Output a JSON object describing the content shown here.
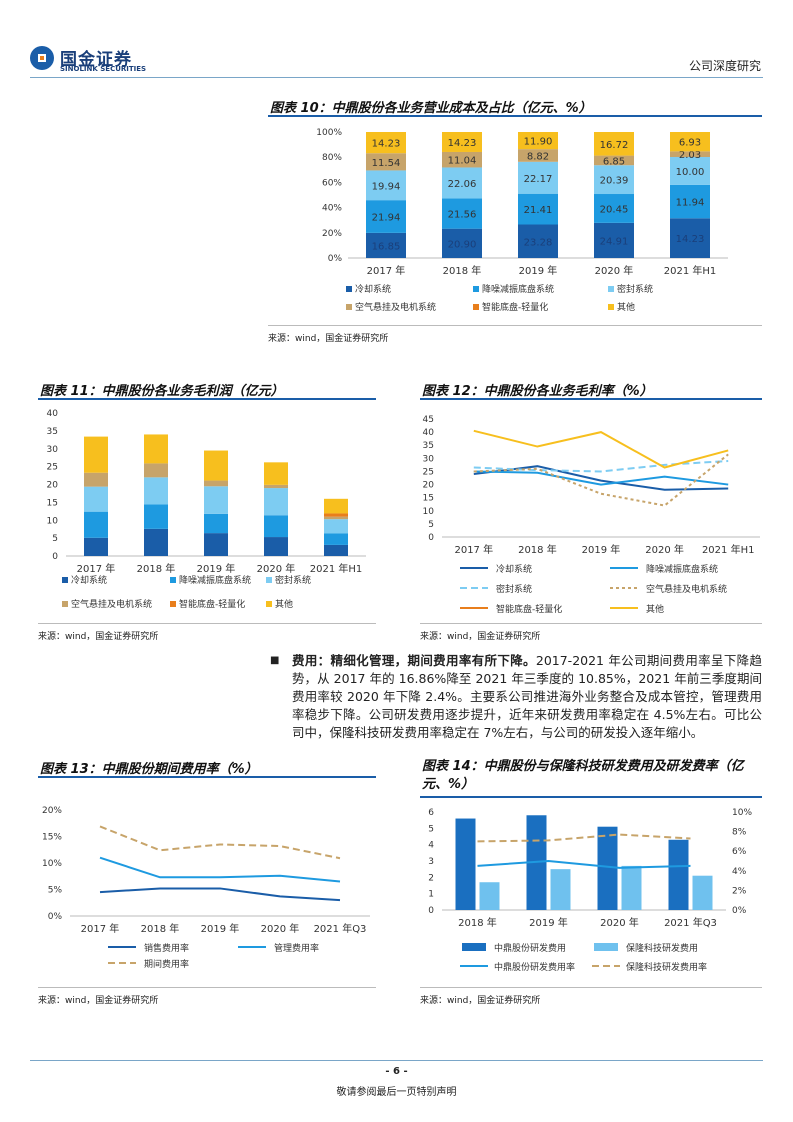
{
  "header": {
    "logo_cn": "国金证券",
    "logo_en": "SINOLINK SECURITIES",
    "report_type": "公司深度研究"
  },
  "footer": {
    "page_number": "- 6 -",
    "disclaimer": "敬请参阅最后一页特别声明"
  },
  "figure10": {
    "title": "图表 10：中鼎股份各业务营业成本及占比（亿元、%）",
    "source": "来源：wind，国金证券研究所",
    "chart_data": {
      "type": "bar",
      "stacked": "percent",
      "categories": [
        "2017 年",
        "2018 年",
        "2019 年",
        "2020 年",
        "2021 年H1"
      ],
      "y_ticks": [
        "0%",
        "20%",
        "40%",
        "60%",
        "80%",
        "100%"
      ],
      "series": [
        {
          "name": "冷却系统",
          "color": "#1a5da8",
          "values": [
            16.85,
            20.9,
            23.28,
            24.91,
            14.23
          ]
        },
        {
          "name": "降噪减振底盘系统",
          "color": "#1e9ae0",
          "values": [
            21.94,
            21.56,
            21.41,
            20.45,
            11.94
          ]
        },
        {
          "name": "密封系统",
          "color": "#7dccf2",
          "values": [
            19.94,
            22.06,
            22.17,
            20.39,
            10.0
          ]
        },
        {
          "name": "空气悬挂及电机系统",
          "color": "#c7a46a",
          "values": [
            11.54,
            11.04,
            8.82,
            6.85,
            2.03
          ]
        },
        {
          "name": "智能底盘-轻量化",
          "color": "#e87e1c",
          "values": [
            0,
            0,
            0,
            0,
            0
          ]
        },
        {
          "name": "其他",
          "color": "#f7bf1e",
          "values": [
            14.23,
            14.23,
            11.9,
            16.72,
            6.93
          ]
        }
      ],
      "labels": [
        [
          "16.85",
          "21.94",
          "19.94",
          "11.54",
          "",
          "14.23"
        ],
        [
          "20.90",
          "21.56",
          "22.06",
          "11.04",
          "",
          "14.23"
        ],
        [
          "23.28",
          "21.41",
          "22.17",
          "8.82",
          "",
          "11.90"
        ],
        [
          "24.91",
          "20.45",
          "20.39",
          "6.85",
          "",
          "16.72"
        ],
        [
          "14.23",
          "11.94",
          "10.00",
          "2.03",
          "",
          "6.93"
        ]
      ]
    }
  },
  "figure11": {
    "title": "图表 11：中鼎股份各业务毛利润（亿元）",
    "source": "来源：wind，国金证券研究所",
    "chart_data": {
      "type": "bar",
      "stacked": "absolute",
      "categories": [
        "2017 年",
        "2018 年",
        "2019 年",
        "2020 年",
        "2021 年H1"
      ],
      "y_ticks": [
        "0",
        "5",
        "10",
        "15",
        "20",
        "25",
        "30",
        "35",
        "40"
      ],
      "ylim": [
        0,
        40
      ],
      "series": [
        {
          "name": "冷却系统",
          "color": "#1a5da8",
          "values": [
            5.1,
            7.6,
            6.4,
            5.3,
            3.1
          ]
        },
        {
          "name": "降噪减振底盘系统",
          "color": "#1e9ae0",
          "values": [
            7.3,
            6.8,
            5.4,
            6.1,
            3.2
          ]
        },
        {
          "name": "密封系统",
          "color": "#7dccf2",
          "values": [
            7.0,
            7.6,
            7.7,
            7.6,
            4.0
          ]
        },
        {
          "name": "空气悬挂及电机系统",
          "color": "#c7a46a",
          "values": [
            3.9,
            3.9,
            1.6,
            0.9,
            0.7
          ]
        },
        {
          "name": "智能底盘-轻量化",
          "color": "#e87e1c",
          "values": [
            0,
            0,
            0,
            0,
            0.9
          ]
        },
        {
          "name": "其他",
          "color": "#f7bf1e",
          "values": [
            10.1,
            8.1,
            8.4,
            6.3,
            4.1
          ]
        }
      ]
    }
  },
  "figure12": {
    "title": "图表 12：中鼎股份各业务毛利率（%）",
    "source": "来源：wind，国金证券研究所",
    "chart_data": {
      "type": "line",
      "categories": [
        "2017 年",
        "2018 年",
        "2019 年",
        "2020 年",
        "2021 年H1"
      ],
      "y_ticks": [
        "0",
        "5",
        "10",
        "15",
        "20",
        "25",
        "30",
        "35",
        "40",
        "45"
      ],
      "ylim": [
        0,
        45
      ],
      "series": [
        {
          "name": "冷却系统",
          "color": "#1a5da8",
          "style": "solid",
          "values": [
            24,
            27,
            21.5,
            18,
            18.5
          ]
        },
        {
          "name": "降噪减振底盘系统",
          "color": "#1e9ae0",
          "style": "solid",
          "values": [
            25,
            24.5,
            20,
            23,
            20
          ]
        },
        {
          "name": "密封系统",
          "color": "#7dccf2",
          "style": "dash",
          "values": [
            26.5,
            25.5,
            25,
            27.5,
            29
          ]
        },
        {
          "name": "空气悬挂及电机系统",
          "color": "#c7a46a",
          "style": "dot",
          "values": [
            25,
            26,
            16.5,
            12,
            31.5
          ]
        },
        {
          "name": "智能底盘-轻量化",
          "color": "#e87e1c",
          "style": "solid",
          "values": [
            null,
            null,
            null,
            null,
            null
          ]
        },
        {
          "name": "其他",
          "color": "#f7bf1e",
          "style": "solid",
          "values": [
            40.5,
            34.5,
            40,
            26.5,
            33
          ]
        }
      ]
    }
  },
  "paragraph": {
    "bullet": "■",
    "lead": "费用：精细化管理，期间费用率有所下降。",
    "body": "2017-2021 年公司期间费用率呈下降趋势，从 2017 年的 16.86%降至 2021 年三季度的 10.85%，2021 年前三季度期间费用率较 2020 年下降 2.4%。主要系公司推进海外业务整合及成本管控，管理费用率稳步下降。公司研发费用逐步提升，近年来研发费用率稳定在 4.5%左右。可比公司中，保隆科技研发费用率稳定在 7%左右，与公司的研发投入逐年缩小。"
  },
  "figure13": {
    "title": "图表 13：中鼎股份期间费用率（%）",
    "source": "来源：wind，国金证券研究所",
    "chart_data": {
      "type": "line",
      "categories": [
        "2017 年",
        "2018 年",
        "2019 年",
        "2020 年",
        "2021 年Q3"
      ],
      "y_ticks": [
        "0%",
        "5%",
        "10%",
        "15%",
        "20%"
      ],
      "ylim": [
        0,
        20
      ],
      "series": [
        {
          "name": "销售费用率",
          "color": "#1a5da8",
          "style": "solid",
          "values": [
            4.5,
            5.2,
            5.2,
            3.7,
            3.0
          ]
        },
        {
          "name": "管理费用率",
          "color": "#1e9ae0",
          "style": "solid",
          "values": [
            11.0,
            7.3,
            7.3,
            7.6,
            6.5
          ]
        },
        {
          "name": "期间费用率",
          "color": "#c7a46a",
          "style": "dash",
          "values": [
            16.9,
            12.4,
            13.5,
            13.2,
            10.9
          ]
        }
      ]
    }
  },
  "figure14": {
    "title": "图表 14：中鼎股份与保隆科技研发费用及研发费率（亿元、%）",
    "source": "来源：wind，国金证券研究所",
    "chart_data": {
      "type": "bar",
      "categories": [
        "2018 年",
        "2019 年",
        "2020 年",
        "2021 年Q3"
      ],
      "y_ticks_left": [
        "0",
        "1",
        "2",
        "3",
        "4",
        "5",
        "6"
      ],
      "y_ticks_right": [
        "0%",
        "2%",
        "4%",
        "6%",
        "8%",
        "10%"
      ],
      "ylim_left": [
        0,
        6
      ],
      "ylim_right": [
        0,
        10
      ],
      "bars": [
        {
          "name": "中鼎股份研发费用",
          "color": "#1a6fc0",
          "values": [
            5.6,
            5.8,
            5.1,
            4.3
          ]
        },
        {
          "name": "保隆科技研发费用",
          "color": "#6fc1ee",
          "values": [
            1.7,
            2.5,
            2.7,
            2.1
          ]
        }
      ],
      "lines": [
        {
          "name": "中鼎股份研发费用率",
          "color": "#1e9ae0",
          "style": "solid",
          "values": [
            4.5,
            5.0,
            4.3,
            4.5
          ]
        },
        {
          "name": "保隆科技研发费用率",
          "color": "#c7a46a",
          "style": "dash",
          "values": [
            7.0,
            7.1,
            7.7,
            7.3
          ]
        }
      ]
    }
  }
}
